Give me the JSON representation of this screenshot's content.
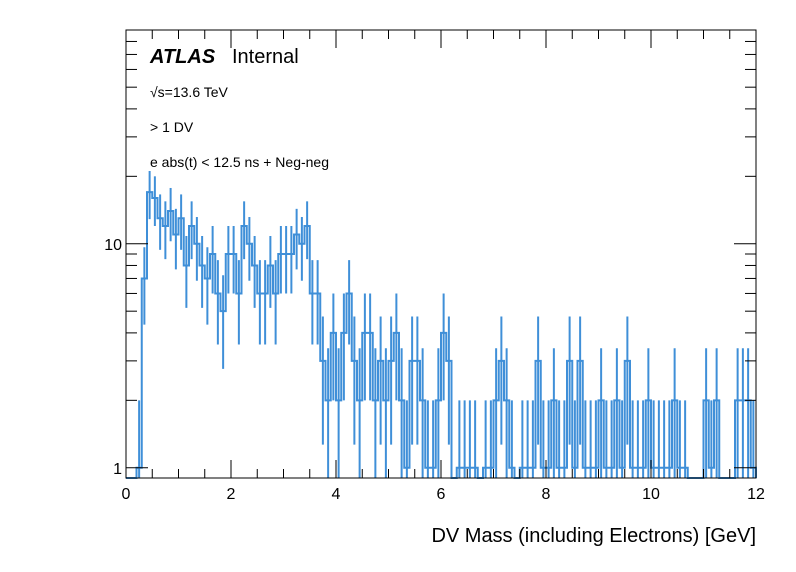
{
  "chart_data": {
    "type": "bar",
    "style": "histogram-with-error-bars",
    "title": "",
    "xlabel": "DV Mass (including Electrons) [GeV]",
    "ylabel": "",
    "xlim": [
      0,
      12
    ],
    "ylim": [
      0.9,
      90
    ],
    "yscale": "log",
    "bin_width": 0.1,
    "x_ticks": [
      "0",
      "2",
      "4",
      "6",
      "8",
      "10",
      "12"
    ],
    "x_tick_values": [
      0,
      2,
      4,
      6,
      8,
      10,
      12
    ],
    "y_ticks": [
      "1",
      "10"
    ],
    "y_tick_values": [
      1,
      10
    ],
    "grid": false,
    "series_color": "#3f8fd8",
    "annotations": {
      "experiment": "ATLAS",
      "status": "Internal",
      "energy": "√s=13.6 TeV",
      "selection": "> 1 DV",
      "cut": "e abs(t) < 12.5 ns + Neg-neg"
    },
    "values": [
      0,
      0,
      1,
      7,
      17,
      16,
      13,
      12,
      14,
      11,
      13,
      8,
      12,
      10,
      8,
      7,
      9,
      6,
      5,
      9,
      9,
      6,
      12,
      10,
      8,
      6,
      6,
      8,
      6,
      9,
      9,
      9,
      11,
      10,
      12,
      6,
      6,
      3,
      2,
      4,
      2,
      4,
      6,
      3,
      2,
      4,
      4,
      2,
      3,
      2,
      3,
      4,
      2,
      1,
      3,
      3,
      2,
      1,
      1,
      2,
      4,
      3,
      0,
      1,
      1,
      1,
      1,
      0,
      1,
      1,
      2,
      3,
      2,
      1,
      0,
      1,
      1,
      1,
      0,
      1,
      2,
      1,
      3,
      1,
      4,
      2,
      1,
      3,
      1,
      0,
      0,
      0,
      0,
      0,
      0,
      0,
      0,
      0,
      0,
      0,
      0,
      0,
      0,
      0,
      0,
      0,
      0,
      0,
      0,
      0,
      0,
      0,
      0,
      0,
      0,
      0,
      0,
      0,
      0,
      0
    ],
    "values_tail": [
      3,
      1,
      1,
      2,
      1,
      1,
      3,
      1,
      3,
      1,
      1,
      1,
      2,
      1,
      1,
      2,
      1,
      3,
      1,
      1,
      1,
      2,
      1,
      1,
      1,
      1,
      2,
      1,
      1,
      0,
      0,
      0,
      2,
      1,
      2,
      0,
      0,
      0,
      2,
      2,
      2,
      1
    ]
  }
}
